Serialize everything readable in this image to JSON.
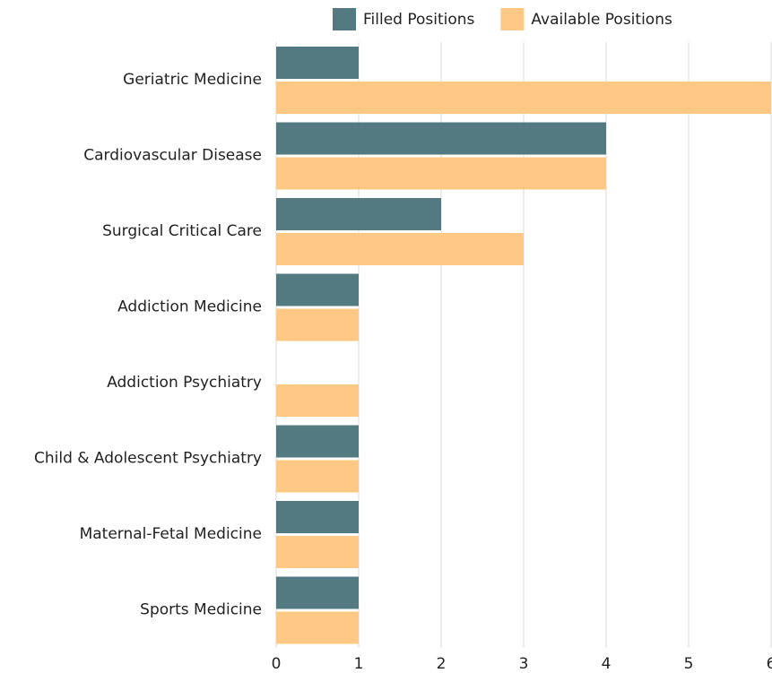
{
  "chart_data": {
    "type": "bar",
    "orientation": "horizontal",
    "categories": [
      "Geriatric Medicine",
      "Cardiovascular Disease",
      "Surgical Critical Care",
      "Addiction Medicine",
      "Addiction Psychiatry",
      "Child & Adolescent Psychiatry",
      "Maternal-Fetal Medicine",
      "Sports Medicine"
    ],
    "series": [
      {
        "name": "Filled Positions",
        "color": "#537a80",
        "values": [
          1,
          4,
          2,
          1,
          0,
          1,
          1,
          1
        ]
      },
      {
        "name": "Available Positions",
        "color": "#ffc885",
        "values": [
          6,
          4,
          3,
          1,
          1,
          1,
          1,
          1
        ]
      }
    ],
    "xlim": [
      0,
      6
    ],
    "xticks": [
      0,
      1,
      2,
      3,
      4,
      5,
      6
    ],
    "grid": true,
    "legend": "top"
  }
}
